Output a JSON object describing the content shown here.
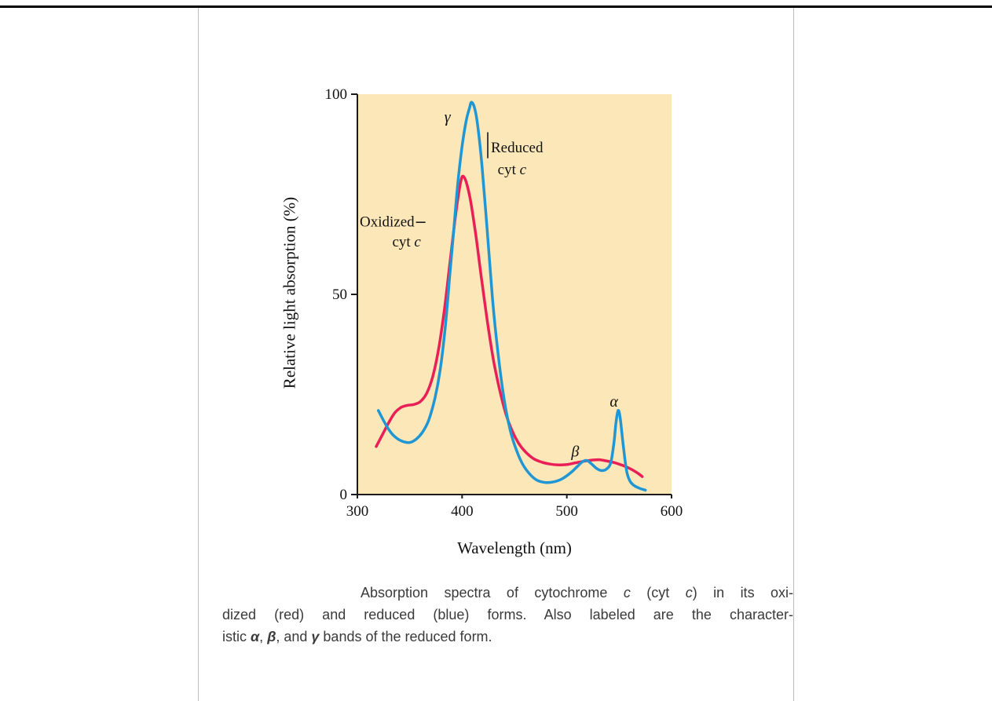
{
  "page": {
    "background": "#ffffff",
    "top_rule_color": "#000000",
    "column_rule_color": "#bcbcbc"
  },
  "chart_data": {
    "type": "line",
    "title": "",
    "xlabel": "Wavelength (nm)",
    "ylabel": "Relative light absorption (%)",
    "xlim": [
      300,
      600
    ],
    "ylim": [
      0,
      100
    ],
    "x_ticks": [
      300,
      400,
      500,
      600
    ],
    "y_ticks": [
      0,
      50,
      100
    ],
    "grid": false,
    "plot_bg": "#fbe7b7",
    "axis_color": "#1a1a1a",
    "series": [
      {
        "id": "oxidized-cyt-c",
        "name": "Oxidized cyt c",
        "color": "#e82057",
        "points": [
          [
            318,
            12
          ],
          [
            324,
            15
          ],
          [
            330,
            18
          ],
          [
            336,
            20.5
          ],
          [
            342,
            21.8
          ],
          [
            348,
            22.3
          ],
          [
            354,
            22.5
          ],
          [
            360,
            23.2
          ],
          [
            366,
            25.2
          ],
          [
            372,
            29.5
          ],
          [
            378,
            37
          ],
          [
            383,
            46
          ],
          [
            388,
            57
          ],
          [
            392,
            66
          ],
          [
            396,
            74
          ],
          [
            399,
            78.5
          ],
          [
            401,
            79.5
          ],
          [
            404,
            78
          ],
          [
            408,
            73.5
          ],
          [
            413,
            65
          ],
          [
            418,
            55
          ],
          [
            424,
            43.5
          ],
          [
            430,
            33.5
          ],
          [
            436,
            26
          ],
          [
            442,
            20
          ],
          [
            448,
            15.8
          ],
          [
            454,
            12.8
          ],
          [
            460,
            10.8
          ],
          [
            468,
            9
          ],
          [
            476,
            8.1
          ],
          [
            484,
            7.6
          ],
          [
            492,
            7.4
          ],
          [
            500,
            7.5
          ],
          [
            508,
            7.9
          ],
          [
            516,
            8.3
          ],
          [
            524,
            8.6
          ],
          [
            531,
            8.7
          ],
          [
            538,
            8.4
          ],
          [
            545,
            8
          ],
          [
            551,
            7.5
          ],
          [
            557,
            6.9
          ],
          [
            563,
            6.1
          ],
          [
            568,
            5.3
          ],
          [
            572,
            4.5
          ]
        ]
      },
      {
        "id": "reduced-cyt-c",
        "name": "Reduced cyt c",
        "color": "#2097d4",
        "points": [
          [
            320,
            21
          ],
          [
            326,
            18
          ],
          [
            332,
            15.5
          ],
          [
            338,
            14
          ],
          [
            344,
            13.2
          ],
          [
            350,
            13
          ],
          [
            356,
            13.8
          ],
          [
            362,
            15.5
          ],
          [
            368,
            18.5
          ],
          [
            374,
            24
          ],
          [
            379,
            31
          ],
          [
            384,
            42
          ],
          [
            388,
            54
          ],
          [
            392,
            66
          ],
          [
            396,
            78
          ],
          [
            400,
            87
          ],
          [
            404,
            93.5
          ],
          [
            407,
            96.5
          ],
          [
            409,
            98
          ],
          [
            412,
            96.5
          ],
          [
            415,
            92
          ],
          [
            419,
            82
          ],
          [
            424,
            66
          ],
          [
            429,
            49
          ],
          [
            434,
            36
          ],
          [
            440,
            24
          ],
          [
            446,
            16
          ],
          [
            452,
            11
          ],
          [
            458,
            7.5
          ],
          [
            465,
            5
          ],
          [
            472,
            3.5
          ],
          [
            480,
            3
          ],
          [
            488,
            3.2
          ],
          [
            496,
            4
          ],
          [
            504,
            5.5
          ],
          [
            510,
            7
          ],
          [
            515,
            8.2
          ],
          [
            519,
            8.5
          ],
          [
            523,
            7.8
          ],
          [
            528,
            6.6
          ],
          [
            533,
            6
          ],
          [
            538,
            6.4
          ],
          [
            542,
            8
          ],
          [
            545,
            13
          ],
          [
            547,
            18
          ],
          [
            549,
            21
          ],
          [
            551,
            19
          ],
          [
            554,
            12
          ],
          [
            557,
            6
          ],
          [
            560,
            3.5
          ],
          [
            564,
            2.3
          ],
          [
            569,
            1.6
          ],
          [
            575,
            1.1
          ]
        ]
      }
    ],
    "annotations": [
      {
        "id": "gamma-band-label",
        "lines": [
          {
            "nm": 386,
            "pct": 93,
            "anchor": "middle",
            "size": 20,
            "segments": [
              {
                "t": "γ",
                "i": true
              }
            ]
          }
        ]
      },
      {
        "id": "reduced-cyt-c-label",
        "leader": {
          "nm1": 424.5,
          "pct1": 84,
          "nm2": 424.5,
          "pct2": 90.5
        },
        "lines": [
          {
            "nm": 427.5,
            "pct": 85.5,
            "anchor": "start",
            "size": 19,
            "segments": [
              {
                "t": "Reduced"
              }
            ]
          },
          {
            "nm": 434,
            "pct": 80,
            "anchor": "start",
            "size": 19,
            "segments": [
              {
                "t": "cyt "
              },
              {
                "t": "c",
                "i": true
              }
            ]
          }
        ]
      },
      {
        "id": "oxidized-cyt-c-label",
        "leader": {
          "nm1": 356,
          "pct1": 68,
          "nm2": 365,
          "pct2": 68
        },
        "lines": [
          {
            "nm": 354.5,
            "pct": 67,
            "anchor": "end",
            "size": 19,
            "segments": [
              {
                "t": "Oxidized"
              }
            ]
          },
          {
            "nm": 347,
            "pct": 62,
            "anchor": "middle",
            "size": 19,
            "segments": [
              {
                "t": "cyt "
              },
              {
                "t": "c",
                "i": true
              }
            ]
          }
        ]
      },
      {
        "id": "beta-band-label",
        "lines": [
          {
            "nm": 508,
            "pct": 9.5,
            "anchor": "middle",
            "size": 20,
            "segments": [
              {
                "t": "β",
                "i": true
              }
            ]
          }
        ]
      },
      {
        "id": "alpha-band-label",
        "lines": [
          {
            "nm": 545,
            "pct": 22,
            "anchor": "middle",
            "size": 20,
            "segments": [
              {
                "t": "α",
                "i": true
              }
            ]
          }
        ]
      }
    ]
  },
  "caption": {
    "lines": [
      [
        {
          "t": "Absorption spectra of cytochrome "
        },
        {
          "t": "c",
          "i": true
        },
        {
          "t": " (cyt "
        },
        {
          "t": "c",
          "i": true
        },
        {
          "t": ") in its oxi-"
        }
      ],
      [
        {
          "t": "dized (red) and reduced (blue) forms. Also labeled are the character-"
        }
      ],
      [
        {
          "t": "istic "
        },
        {
          "t": "α",
          "i": true,
          "b": true
        },
        {
          "t": ", "
        },
        {
          "t": "β",
          "i": true,
          "b": true
        },
        {
          "t": ", and "
        },
        {
          "t": "γ",
          "i": true,
          "b": true
        },
        {
          "t": " bands of the reduced form."
        }
      ]
    ]
  }
}
